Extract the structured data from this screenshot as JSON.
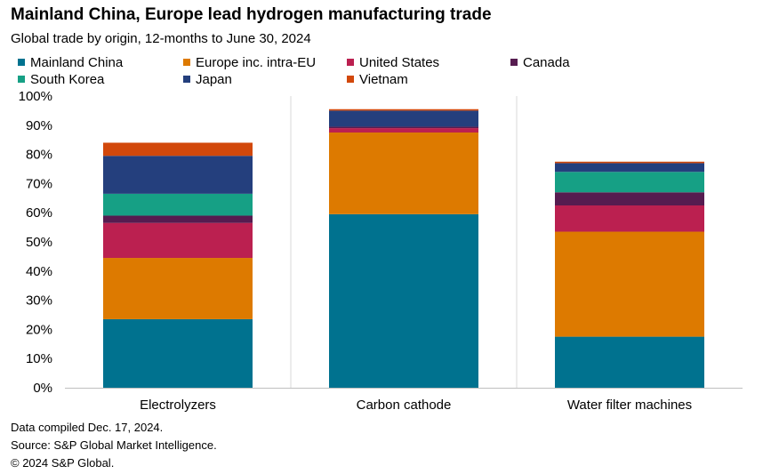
{
  "title": "Mainland China, Europe lead hydrogen manufacturing trade",
  "subtitle": "Global trade by origin, 12-months to June 30, 2024",
  "chart_data": {
    "type": "bar",
    "stacked": true,
    "categories": [
      "Electrolyzers",
      "Carbon cathode",
      "Water filter machines"
    ],
    "ylim": [
      0,
      100
    ],
    "yticks": [
      "0%",
      "10%",
      "20%",
      "30%",
      "40%",
      "50%",
      "60%",
      "70%",
      "80%",
      "90%",
      "100%"
    ],
    "grid": false,
    "legend_position": "top",
    "series": [
      {
        "name": "Mainland China",
        "color": "#00728f",
        "values": [
          23.5,
          59.5,
          17.5
        ]
      },
      {
        "name": "Europe inc. intra-EU",
        "color": "#dd7a00",
        "values": [
          21,
          28,
          36
        ]
      },
      {
        "name": "United States",
        "color": "#bb2050",
        "values": [
          12,
          1.5,
          9
        ]
      },
      {
        "name": "Canada",
        "color": "#561c50",
        "values": [
          2.5,
          0.5,
          4.5
        ]
      },
      {
        "name": "South Korea",
        "color": "#16a085",
        "values": [
          7.5,
          0,
          7
        ]
      },
      {
        "name": "Japan",
        "color": "#243f7d",
        "values": [
          13,
          5.5,
          3
        ]
      },
      {
        "name": "Vietnam",
        "color": "#d2480b",
        "values": [
          4.5,
          0.5,
          0.5
        ]
      }
    ]
  },
  "footnotes": [
    "Data compiled Dec. 17, 2024.",
    "Source: S&P Global Market Intelligence.",
    "© 2024 S&P Global."
  ]
}
